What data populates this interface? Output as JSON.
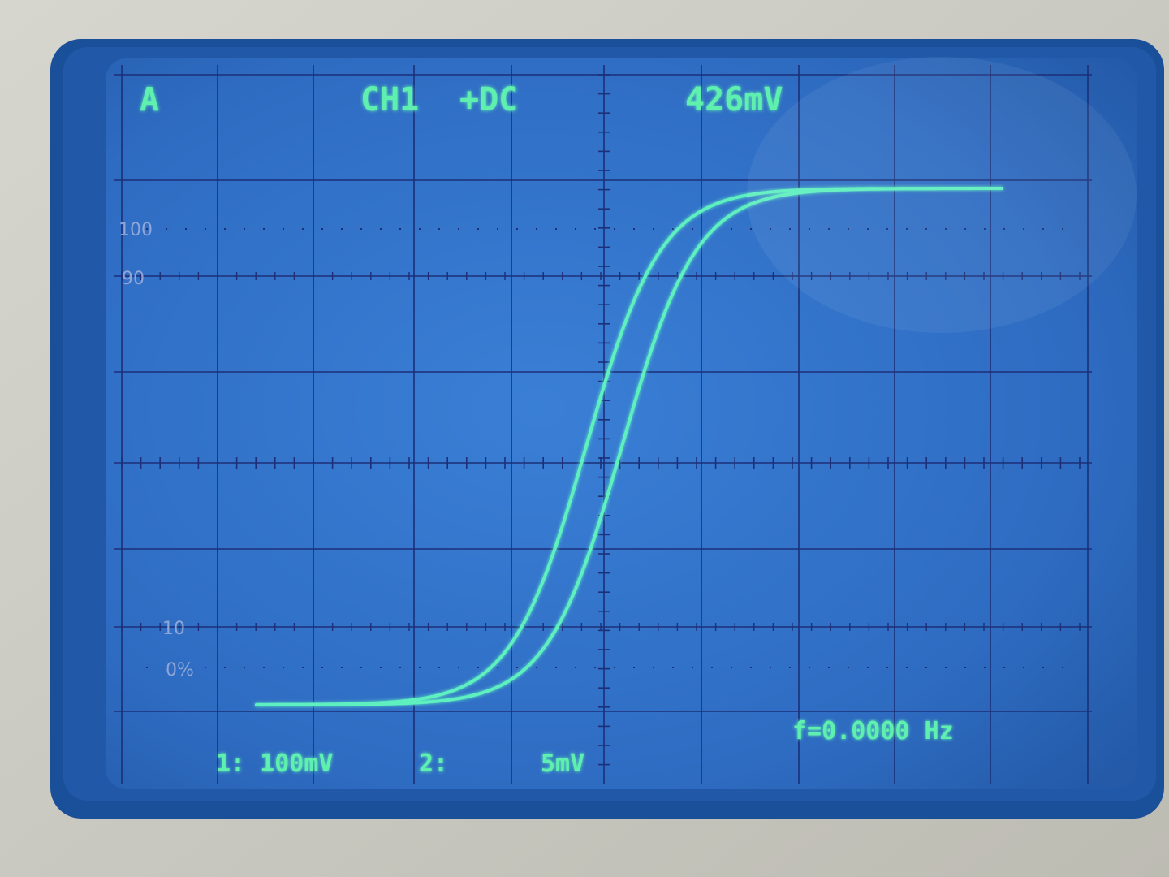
{
  "screen": {
    "trigger_indicator": "A",
    "channel_label": "CH1",
    "coupling_label": "+DC",
    "measurement_value": "426mV",
    "frequency_readout": "f=0.0000 Hz",
    "ch1_scale": "1: 100mV",
    "ch2_label": "2:",
    "ch2_scale": "5mV"
  },
  "graticule_marks": {
    "label_100": "100",
    "label_90": "90",
    "label_10": "10",
    "label_0": "0%"
  },
  "colors": {
    "screen_blue": "#2f6fc4",
    "trace": "#5ef0c0",
    "text": "#5ef0b0",
    "grid": "#1c2f78",
    "bezel": "#1a4f9a",
    "housing": "#c9c8c0"
  },
  "trace": {
    "shape": "hysteresis loop",
    "x_divisions": 10,
    "y_divisions": 8
  }
}
